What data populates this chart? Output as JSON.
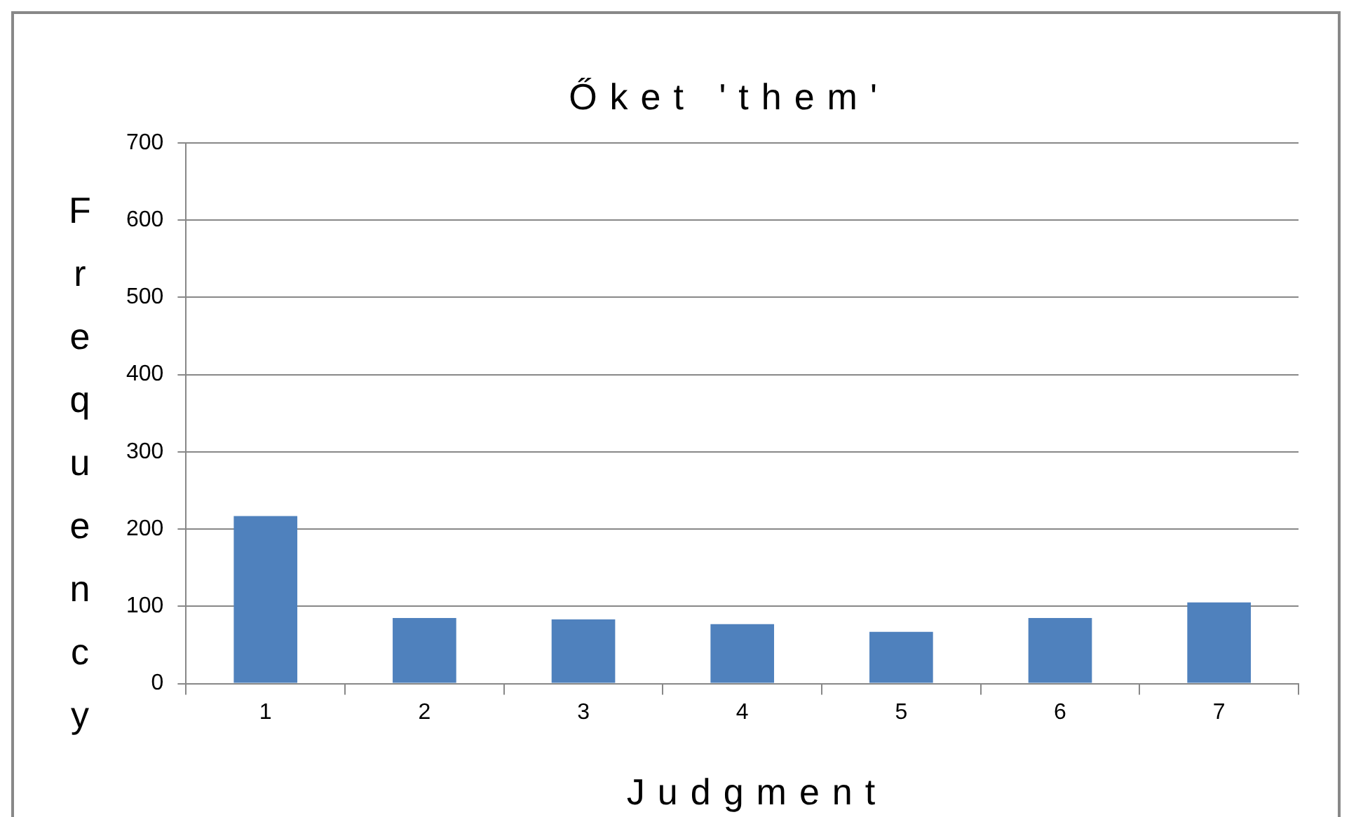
{
  "chart_data": {
    "type": "bar",
    "title": "Őket 'them'",
    "xlabel": "Judgment",
    "ylabel": "Frequency",
    "categories": [
      "1",
      "2",
      "3",
      "4",
      "5",
      "6",
      "7"
    ],
    "values": [
      217,
      85,
      83,
      77,
      67,
      85,
      105
    ],
    "color": "#4f81bd",
    "ylim": [
      0,
      700
    ],
    "yticks": [
      0,
      100,
      200,
      300,
      400,
      500,
      600,
      700
    ],
    "grid": "y",
    "legend": false
  }
}
